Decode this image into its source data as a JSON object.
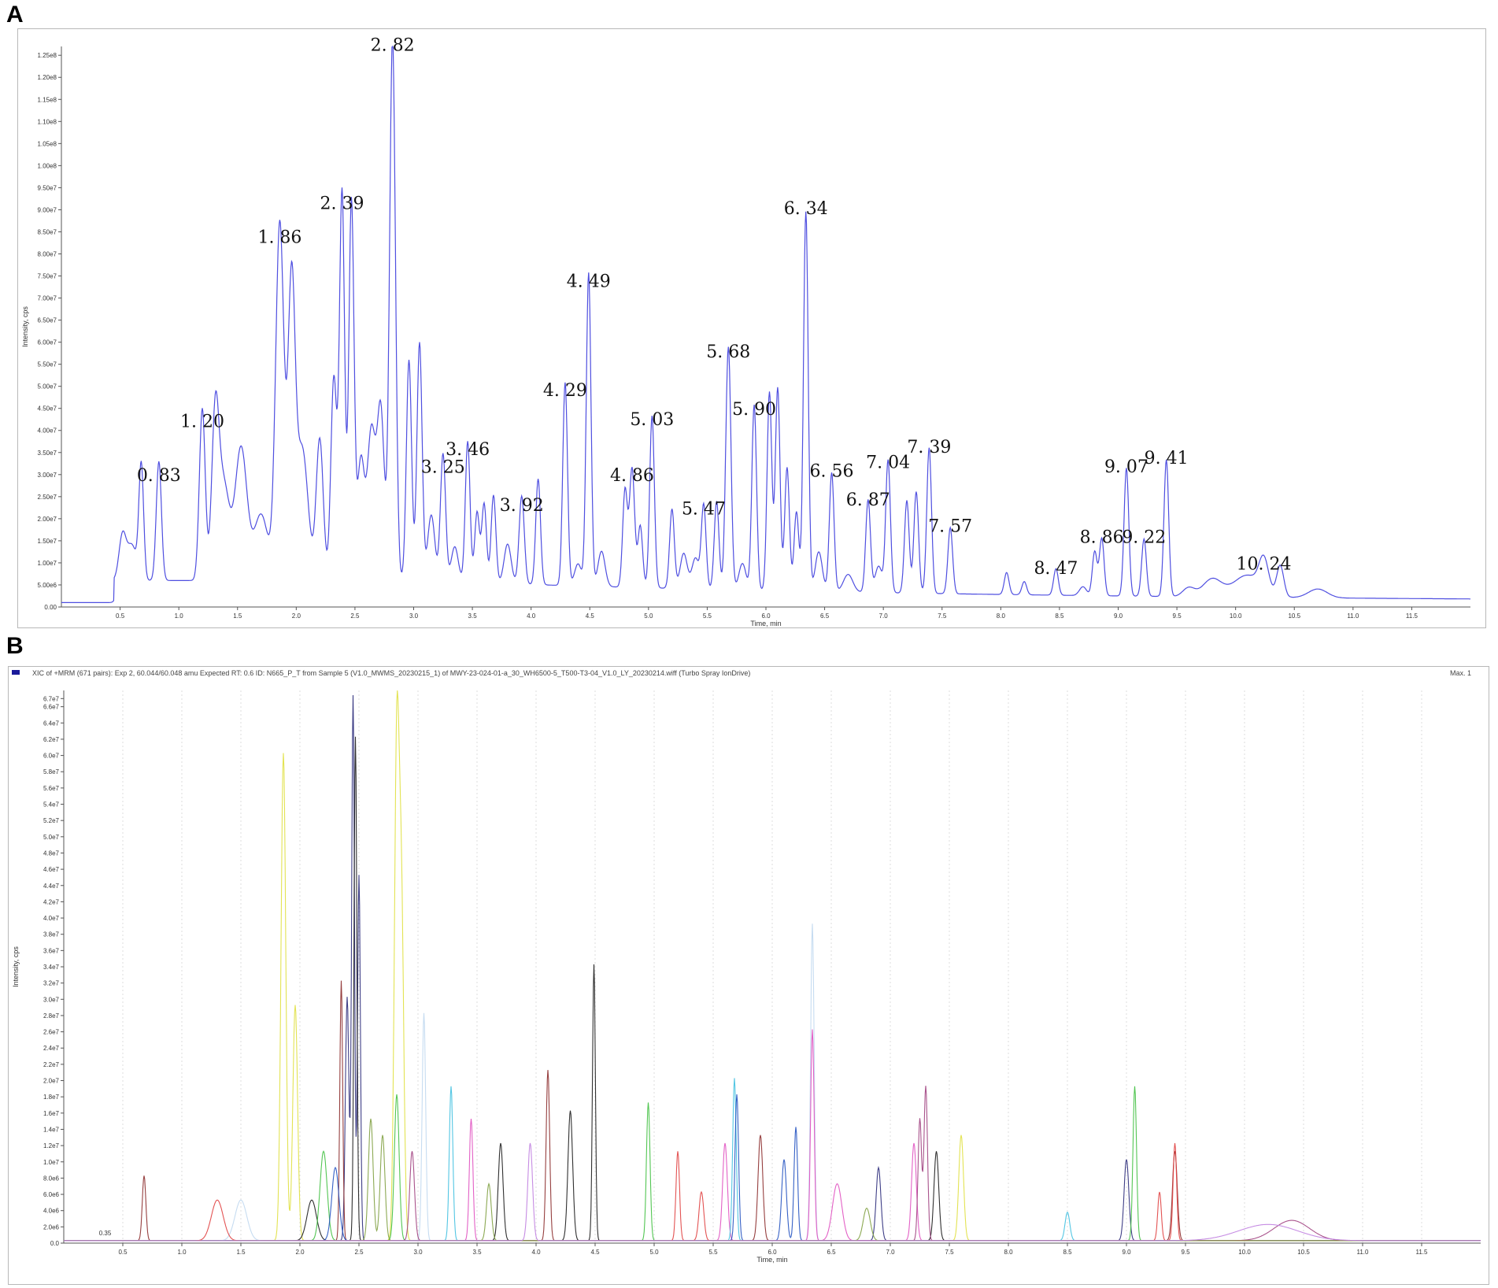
{
  "panels": {
    "a_letter": "A",
    "b_letter": "B"
  },
  "colors": {
    "trace_a": "#4f4fe0",
    "axis": "#555555",
    "grid_b": "#dddddd"
  },
  "chart_data": [
    {
      "type": "line",
      "panel": "A",
      "xlabel": "Time, min",
      "ylabel": "Intensity, cps",
      "xlim": [
        0,
        12.0
      ],
      "ylim": [
        0,
        127000000.0
      ],
      "x_ticks": [
        0.5,
        1.0,
        1.5,
        2.0,
        2.5,
        3.0,
        3.5,
        4.0,
        4.5,
        5.0,
        5.5,
        6.0,
        6.5,
        7.0,
        7.5,
        8.0,
        8.5,
        9.0,
        9.5,
        10.0,
        10.5,
        11.0,
        11.5
      ],
      "x_tick_labels": [
        "0.5",
        "1.0",
        "1.5",
        "2.0",
        "2.5",
        "3.0",
        "3.5",
        "4.0",
        "4.5",
        "5.0",
        "5.5",
        "6.0",
        "6.5",
        "7.0",
        "7.5",
        "8.0",
        "8.5",
        "9.0",
        "9.5",
        "10.0",
        "10.5",
        "11.0",
        "11.5"
      ],
      "y_tick_labels": [
        "0.00",
        "5.00e6",
        "1.00e7",
        "1.50e7",
        "2.00e7",
        "2.50e7",
        "3.00e7",
        "3.50e7",
        "4.00e7",
        "4.50e7",
        "5.00e7",
        "5.50e7",
        "6.00e7",
        "6.50e7",
        "7.00e7",
        "7.50e7",
        "8.00e7",
        "8.50e7",
        "9.00e7",
        "9.50e7",
        "1.00e8",
        "1.05e8",
        "1.10e8",
        "1.15e8",
        "1.20e8",
        "1.25e8"
      ],
      "baseline": 5000000,
      "peaks": [
        {
          "t": 0.52,
          "h": 10000000.0,
          "w": 0.03
        },
        {
          "t": 0.6,
          "h": 8000000.0,
          "w": 0.04
        },
        {
          "t": 0.68,
          "h": 26000000.0,
          "w": 0.02
        },
        {
          "t": 0.83,
          "h": 27000000.0,
          "w": 0.022
        },
        {
          "t": 1.2,
          "h": 39000000.0,
          "w": 0.025
        },
        {
          "t": 1.31,
          "h": 34000000.0,
          "w": 0.03
        },
        {
          "t": 1.38,
          "h": 22000000.0,
          "w": 0.05
        },
        {
          "t": 1.53,
          "h": 30000000.0,
          "w": 0.05
        },
        {
          "t": 1.7,
          "h": 15000000.0,
          "w": 0.06
        },
        {
          "t": 1.86,
          "h": 81000000.0,
          "w": 0.035
        },
        {
          "t": 1.96,
          "h": 65000000.0,
          "w": 0.03
        },
        {
          "t": 2.05,
          "h": 30000000.0,
          "w": 0.05
        },
        {
          "t": 2.2,
          "h": 32000000.0,
          "w": 0.03
        },
        {
          "t": 2.32,
          "h": 46000000.0,
          "w": 0.025
        },
        {
          "t": 2.39,
          "h": 88000000.0,
          "w": 0.022
        },
        {
          "t": 2.47,
          "h": 86000000.0,
          "w": 0.022
        },
        {
          "t": 2.55,
          "h": 27000000.0,
          "w": 0.03
        },
        {
          "t": 2.64,
          "h": 34000000.0,
          "w": 0.035
        },
        {
          "t": 2.72,
          "h": 38000000.0,
          "w": 0.03
        },
        {
          "t": 2.82,
          "h": 123000000.0,
          "w": 0.025
        },
        {
          "t": 2.96,
          "h": 50000000.0,
          "w": 0.022
        },
        {
          "t": 3.05,
          "h": 54000000.0,
          "w": 0.022
        },
        {
          "t": 3.15,
          "h": 15000000.0,
          "w": 0.03
        },
        {
          "t": 3.25,
          "h": 29000000.0,
          "w": 0.022
        },
        {
          "t": 3.35,
          "h": 8000000.0,
          "w": 0.03
        },
        {
          "t": 3.46,
          "h": 32000000.0,
          "w": 0.02
        },
        {
          "t": 3.54,
          "h": 16000000.0,
          "w": 0.02
        },
        {
          "t": 3.6,
          "h": 18000000.0,
          "w": 0.02
        },
        {
          "t": 3.68,
          "h": 20000000.0,
          "w": 0.02
        },
        {
          "t": 3.8,
          "h": 9000000.0,
          "w": 0.03
        },
        {
          "t": 3.92,
          "h": 20000000.0,
          "w": 0.022
        },
        {
          "t": 4.06,
          "h": 24000000.0,
          "w": 0.02
        },
        {
          "t": 4.29,
          "h": 46000000.0,
          "w": 0.02
        },
        {
          "t": 4.4,
          "h": 5000000.0,
          "w": 0.03
        },
        {
          "t": 4.49,
          "h": 71000000.0,
          "w": 0.02
        },
        {
          "t": 4.6,
          "h": 8000000.0,
          "w": 0.03
        },
        {
          "t": 4.8,
          "h": 22000000.0,
          "w": 0.02
        },
        {
          "t": 4.86,
          "h": 27000000.0,
          "w": 0.022
        },
        {
          "t": 4.93,
          "h": 14000000.0,
          "w": 0.02
        },
        {
          "t": 5.03,
          "h": 39000000.0,
          "w": 0.02
        },
        {
          "t": 5.2,
          "h": 18000000.0,
          "w": 0.02
        },
        {
          "t": 5.3,
          "h": 8000000.0,
          "w": 0.03
        },
        {
          "t": 5.4,
          "h": 7000000.0,
          "w": 0.03
        },
        {
          "t": 5.47,
          "h": 19000000.0,
          "w": 0.02
        },
        {
          "t": 5.58,
          "h": 20000000.0,
          "w": 0.02
        },
        {
          "t": 5.68,
          "h": 55000000.0,
          "w": 0.022
        },
        {
          "t": 5.8,
          "h": 6000000.0,
          "w": 0.03
        },
        {
          "t": 5.9,
          "h": 42000000.0,
          "w": 0.02
        },
        {
          "t": 6.03,
          "h": 45000000.0,
          "w": 0.02
        },
        {
          "t": 6.1,
          "h": 46000000.0,
          "w": 0.02
        },
        {
          "t": 6.18,
          "h": 28000000.0,
          "w": 0.02
        },
        {
          "t": 6.26,
          "h": 18000000.0,
          "w": 0.02
        },
        {
          "t": 6.34,
          "h": 86000000.0,
          "w": 0.02
        },
        {
          "t": 6.45,
          "h": 9000000.0,
          "w": 0.03
        },
        {
          "t": 6.56,
          "h": 27000000.0,
          "w": 0.02
        },
        {
          "t": 6.7,
          "h": 4000000.0,
          "w": 0.04
        },
        {
          "t": 6.87,
          "h": 21000000.0,
          "w": 0.02
        },
        {
          "t": 6.96,
          "h": 6000000.0,
          "w": 0.03
        },
        {
          "t": 7.04,
          "h": 30000000.0,
          "w": 0.02
        },
        {
          "t": 7.2,
          "h": 21000000.0,
          "w": 0.02
        },
        {
          "t": 7.28,
          "h": 23000000.0,
          "w": 0.02
        },
        {
          "t": 7.39,
          "h": 33000000.0,
          "w": 0.02
        },
        {
          "t": 7.57,
          "h": 15000000.0,
          "w": 0.02
        },
        {
          "t": 8.05,
          "h": 5000000.0,
          "w": 0.02
        },
        {
          "t": 8.2,
          "h": 3000000.0,
          "w": 0.02
        },
        {
          "t": 8.47,
          "h": 6000000.0,
          "w": 0.02
        },
        {
          "t": 8.7,
          "h": 2000000.0,
          "w": 0.03
        },
        {
          "t": 8.8,
          "h": 10000000.0,
          "w": 0.02
        },
        {
          "t": 8.86,
          "h": 13000000.0,
          "w": 0.02
        },
        {
          "t": 9.07,
          "h": 29000000.0,
          "w": 0.02
        },
        {
          "t": 9.22,
          "h": 13000000.0,
          "w": 0.02
        },
        {
          "t": 9.41,
          "h": 31000000.0,
          "w": 0.02
        },
        {
          "t": 9.6,
          "h": 2000000.0,
          "w": 0.05
        },
        {
          "t": 9.8,
          "h": 4000000.0,
          "w": 0.08
        },
        {
          "t": 10.1,
          "h": 5000000.0,
          "w": 0.12
        },
        {
          "t": 10.24,
          "h": 7000000.0,
          "w": 0.04
        },
        {
          "t": 10.38,
          "h": 7000000.0,
          "w": 0.03
        },
        {
          "t": 10.7,
          "h": 2000000.0,
          "w": 0.08
        }
      ],
      "annotations": [
        {
          "label": "0. 83",
          "t": 0.83,
          "y": 28500000.0
        },
        {
          "label": "1. 20",
          "t": 1.2,
          "y": 40800000.0
        },
        {
          "label": "1. 86",
          "t": 1.86,
          "y": 82500000.0
        },
        {
          "label": "2. 39",
          "t": 2.39,
          "y": 90200000.0
        },
        {
          "label": "2. 82",
          "t": 2.82,
          "y": 126000000.0
        },
        {
          "label": "3. 25",
          "t": 3.25,
          "y": 30400000.0
        },
        {
          "label": "3. 46",
          "t": 3.46,
          "y": 34400000.0
        },
        {
          "label": "3. 92",
          "t": 3.92,
          "y": 21800000.0
        },
        {
          "label": "4. 29",
          "t": 4.29,
          "y": 47800000.0
        },
        {
          "label": "4. 49",
          "t": 4.49,
          "y": 72500000.0
        },
        {
          "label": "4. 86",
          "t": 4.86,
          "y": 28500000.0
        },
        {
          "label": "5. 03",
          "t": 5.03,
          "y": 41200000.0
        },
        {
          "label": "5. 47",
          "t": 5.47,
          "y": 21000000.0
        },
        {
          "label": "5. 68",
          "t": 5.68,
          "y": 56500000.0
        },
        {
          "label": "5. 90",
          "t": 5.9,
          "y": 43500000.0
        },
        {
          "label": "6. 34",
          "t": 6.34,
          "y": 89000000.0
        },
        {
          "label": "6. 56",
          "t": 6.56,
          "y": 29500000.0
        },
        {
          "label": "6. 87",
          "t": 6.87,
          "y": 23000000.0
        },
        {
          "label": "7. 04",
          "t": 7.04,
          "y": 31500000.0
        },
        {
          "label": "7. 39",
          "t": 7.39,
          "y": 35000000.0
        },
        {
          "label": "7. 57",
          "t": 7.57,
          "y": 17000000.0
        },
        {
          "label": "8. 47",
          "t": 8.47,
          "y": 7500000.0
        },
        {
          "label": "8. 86",
          "t": 8.86,
          "y": 14500000.0
        },
        {
          "label": "9. 07",
          "t": 9.07,
          "y": 30500000.0
        },
        {
          "label": "9. 22",
          "t": 9.22,
          "y": 14500000.0
        },
        {
          "label": "9. 41",
          "t": 9.41,
          "y": 32500000.0
        },
        {
          "label": "10. 24",
          "t": 10.24,
          "y": 8500000.0
        }
      ]
    },
    {
      "type": "line",
      "panel": "B",
      "header": "XIC of +MRM (671 pairs): Exp 2, 60.044/60.048 amu Expected RT: 0.6 ID: N665_P_T from Sample 5 (V1.0_MWMS_20230215_1) of MWY-23-024-01-a_30_WH6500-5_T500-T3-04_V1.0_LY_20230214.wiff (Turbo Spray IonDrive)",
      "header_right": "Max. 1",
      "xlabel": "Time, min",
      "ylabel": "Intensity, cps",
      "xlim": [
        0,
        12.0
      ],
      "ylim": [
        0,
        68000000.0
      ],
      "start_marker": "0.35",
      "x_ticks": [
        0.5,
        1.0,
        1.5,
        2.0,
        2.5,
        3.0,
        3.5,
        4.0,
        4.5,
        5.0,
        5.5,
        6.0,
        6.5,
        7.0,
        7.5,
        8.0,
        8.5,
        9.0,
        9.5,
        10.0,
        10.5,
        11.0,
        11.5
      ],
      "x_tick_labels": [
        "0.5",
        "1.0",
        "1.5",
        "2.0",
        "2.5",
        "3.0",
        "3.5",
        "4.0",
        "4.5",
        "5.0",
        "5.5",
        "6.0",
        "6.5",
        "7.0",
        "7.5",
        "8.0",
        "8.5",
        "9.0",
        "9.5",
        "10.0",
        "10.5",
        "11.0",
        "11.5"
      ],
      "y_tick_labels": [
        "0.0",
        "2.0e6",
        "4.0e6",
        "6.0e6",
        "8.0e6",
        "1.0e7",
        "1.2e7",
        "1.4e7",
        "1.6e7",
        "1.8e7",
        "2.0e7",
        "2.2e7",
        "2.4e7",
        "2.6e7",
        "2.8e7",
        "3.0e7",
        "3.2e7",
        "3.4e7",
        "3.6e7",
        "3.8e7",
        "4.0e7",
        "4.2e7",
        "4.4e7",
        "4.6e7",
        "4.8e7",
        "5.0e7",
        "5.2e7",
        "5.4e7",
        "5.6e7",
        "5.8e7",
        "6.0e7",
        "6.2e7",
        "6.4e7",
        "6.6e7",
        "6.7e7"
      ],
      "series": [
        {
          "color": "#e0e040",
          "peaks": [
            [
              1.86,
              60000000.0,
              0.02
            ],
            [
              1.96,
              29000000.0,
              0.02
            ],
            [
              2.82,
              61000000.0,
              0.02
            ],
            [
              2.86,
              40000000.0,
              0.02
            ],
            [
              7.6,
              13000000.0,
              0.02
            ]
          ]
        },
        {
          "color": "#2a2a7a",
          "peaks": [
            [
              2.45,
              67000000.0,
              0.012
            ],
            [
              2.5,
              45000000.0,
              0.012
            ],
            [
              2.4,
              30000000.0,
              0.015
            ],
            [
              6.9,
              9000000.0,
              0.02
            ],
            [
              9.0,
              10000000.0,
              0.02
            ]
          ]
        },
        {
          "color": "#1a1a1a",
          "peaks": [
            [
              2.47,
              62000000.0,
              0.012
            ],
            [
              4.49,
              34000000.0,
              0.012
            ],
            [
              4.29,
              16000000.0,
              0.02
            ],
            [
              3.7,
              12000000.0,
              0.02
            ],
            [
              7.39,
              11000000.0,
              0.02
            ],
            [
              2.1,
              5000000.0,
              0.04
            ]
          ]
        },
        {
          "color": "#8b2a2a",
          "peaks": [
            [
              2.35,
              32000000.0,
              0.012
            ],
            [
              0.68,
              8000000.0,
              0.015
            ],
            [
              4.1,
              21000000.0,
              0.015
            ],
            [
              5.9,
              13000000.0,
              0.02
            ],
            [
              9.41,
              11000000.0,
              0.02
            ]
          ]
        },
        {
          "color": "#c0d8f0",
          "peaks": [
            [
              6.34,
              39000000.0,
              0.015
            ],
            [
              3.05,
              28000000.0,
              0.015
            ],
            [
              1.5,
              5000000.0,
              0.05
            ]
          ]
        },
        {
          "color": "#e050c0",
          "peaks": [
            [
              6.34,
              26000000.0,
              0.015
            ],
            [
              3.45,
              15000000.0,
              0.015
            ],
            [
              5.6,
              12000000.0,
              0.02
            ],
            [
              7.2,
              12000000.0,
              0.02
            ],
            [
              6.55,
              7000000.0,
              0.04
            ]
          ]
        },
        {
          "color": "#40c040",
          "peaks": [
            [
              2.82,
              18000000.0,
              0.02
            ],
            [
              9.07,
              19000000.0,
              0.015
            ],
            [
              4.95,
              17000000.0,
              0.015
            ],
            [
              2.2,
              11000000.0,
              0.03
            ]
          ]
        },
        {
          "color": "#40c0e0",
          "peaks": [
            [
              3.28,
              19000000.0,
              0.015
            ],
            [
              5.68,
              20000000.0,
              0.015
            ],
            [
              8.5,
              3500000.0,
              0.02
            ]
          ]
        },
        {
          "color": "#2050c0",
          "peaks": [
            [
              5.7,
              18000000.0,
              0.015
            ],
            [
              6.2,
              14000000.0,
              0.015
            ],
            [
              6.1,
              10000000.0,
              0.02
            ],
            [
              2.3,
              9000000.0,
              0.03
            ]
          ]
        },
        {
          "color": "#a04080",
          "peaks": [
            [
              7.3,
              19000000.0,
              0.015
            ],
            [
              7.25,
              15000000.0,
              0.015
            ],
            [
              2.95,
              11000000.0,
              0.02
            ],
            [
              10.4,
              2500000.0,
              0.15
            ]
          ]
        },
        {
          "color": "#e04040",
          "peaks": [
            [
              5.2,
              11000000.0,
              0.015
            ],
            [
              9.41,
              12000000.0,
              0.015
            ],
            [
              5.4,
              6000000.0,
              0.02
            ],
            [
              1.3,
              5000000.0,
              0.05
            ],
            [
              9.28,
              6000000.0,
              0.015
            ]
          ]
        },
        {
          "color": "#80a040",
          "peaks": [
            [
              2.6,
              15000000.0,
              0.02
            ],
            [
              2.7,
              13000000.0,
              0.02
            ],
            [
              3.6,
              7000000.0,
              0.02
            ],
            [
              6.8,
              4000000.0,
              0.03
            ]
          ]
        },
        {
          "color": "#c080e0",
          "peaks": [
            [
              3.95,
              12000000.0,
              0.02
            ],
            [
              10.2,
              2000000.0,
              0.25
            ]
          ]
        }
      ]
    }
  ]
}
